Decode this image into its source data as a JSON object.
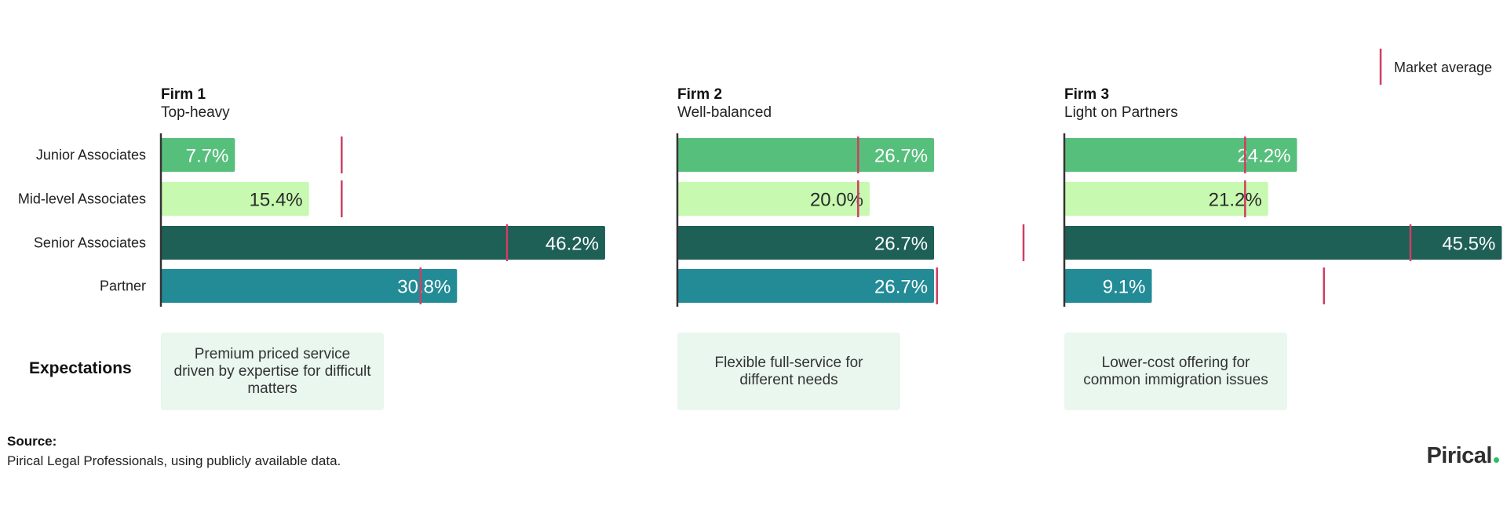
{
  "legend": {
    "label": "Market average",
    "color": "#cf3e64"
  },
  "categories": [
    "Junior Associates",
    "Mid-level Associates",
    "Senior Associates",
    "Partner"
  ],
  "category_colors": [
    "#57bf7c",
    "#c7f9b0",
    "#1e5f56",
    "#228b96"
  ],
  "label_colors": [
    "#ffffff",
    "#2a2a2a",
    "#ffffff",
    "#ffffff"
  ],
  "expectations_label": "Expectations",
  "firms": [
    {
      "title": "Firm 1",
      "subtitle": "Top-heavy",
      "expectation": "Premium priced service driven by expertise for difficult matters"
    },
    {
      "title": "Firm 2",
      "subtitle": "Well-balanced",
      "expectation": "Flexible full-service for different needs"
    },
    {
      "title": "Firm 3",
      "subtitle": "Light on Partners",
      "expectation": "Lower-cost offering for common immigration issues"
    }
  ],
  "chart_data": [
    {
      "type": "bar",
      "categories": [
        "Junior Associates",
        "Mid-level Associates",
        "Senior Associates",
        "Partner"
      ],
      "values": [
        7.7,
        15.4,
        46.2,
        30.8
      ],
      "labels": [
        "7.7%",
        "15.4%",
        "46.2%",
        "30.8%"
      ],
      "market_average": [
        18.8,
        18.8,
        36.0,
        27.0
      ],
      "title": "Firm 1",
      "subtitle": "Top-heavy"
    },
    {
      "type": "bar",
      "categories": [
        "Junior Associates",
        "Mid-level Associates",
        "Senior Associates",
        "Partner"
      ],
      "values": [
        26.7,
        20.0,
        26.7,
        26.7
      ],
      "labels": [
        "26.7%",
        "20.0%",
        "26.7%",
        "26.7%"
      ],
      "market_average": [
        18.8,
        18.8,
        36.0,
        27.0
      ],
      "title": "Firm 2",
      "subtitle": "Well-balanced"
    },
    {
      "type": "bar",
      "categories": [
        "Junior Associates",
        "Mid-level Associates",
        "Senior Associates",
        "Partner"
      ],
      "values": [
        24.2,
        21.2,
        45.5,
        9.1
      ],
      "labels": [
        "24.2%",
        "21.2%",
        "45.5%",
        "9.1%"
      ],
      "market_average": [
        18.8,
        18.8,
        36.0,
        27.0
      ],
      "title": "Firm 3",
      "subtitle": "Light on Partners"
    }
  ],
  "source": {
    "title": "Source:",
    "text": "Pirical Legal Professionals, using publicly available data."
  },
  "logo": {
    "text": "Pirical",
    "dot_color": "#2cbf66"
  }
}
